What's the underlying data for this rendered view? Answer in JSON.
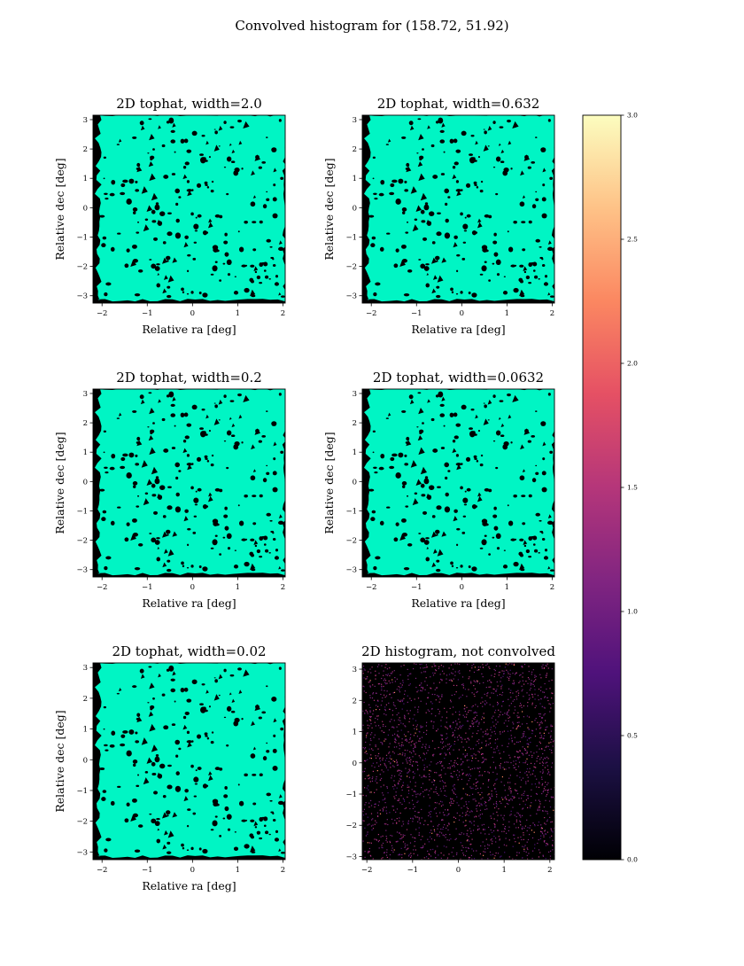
{
  "figure": {
    "suptitle": "Convolved histogram for (158.72, 51.92)"
  },
  "colors": {
    "mask_fill": "#00f5c4",
    "background": "#000000",
    "cmap": [
      "#000004",
      "#1c1044",
      "#4f127b",
      "#812581",
      "#b5367a",
      "#e55064",
      "#fb8761",
      "#fec287",
      "#fcfdbf"
    ]
  },
  "chart_data": [
    {
      "type": "heatmap",
      "title": "2D tophat, width=2.0",
      "xlabel": "Relative ra [deg]",
      "ylabel": "Relative dec [deg]",
      "xlim": [
        -2.2,
        2.05
      ],
      "ylim": [
        -3.25,
        3.15
      ],
      "xticks": [
        -2,
        -1,
        0,
        1,
        2
      ],
      "yticks": [
        -3,
        -2,
        -1,
        0,
        1,
        2,
        3
      ],
      "xtick_labels": [
        "−2",
        "−1",
        "0",
        "1",
        "2"
      ],
      "ytick_labels": [
        "−3",
        "−2",
        "−1",
        "0",
        "1",
        "2",
        "3"
      ],
      "fill_extent": {
        "x": [
          -2.1,
          2.05
        ],
        "y": [
          -3.15,
          3.15
        ]
      },
      "rendering": "binary mask: cyan where smoothed density > 0, black elsewhere"
    },
    {
      "type": "heatmap",
      "title": "2D tophat, width=0.632",
      "xlabel": "Relative ra [deg]",
      "ylabel": "Relative dec [deg]",
      "xlim": [
        -2.2,
        2.05
      ],
      "ylim": [
        -3.25,
        3.15
      ],
      "xticks": [
        -2,
        -1,
        0,
        1,
        2
      ],
      "yticks": [
        -3,
        -2,
        -1,
        0,
        1,
        2,
        3
      ],
      "xtick_labels": [
        "−2",
        "−1",
        "0",
        "1",
        "2"
      ],
      "ytick_labels": [
        "−3",
        "−2",
        "−1",
        "0",
        "1",
        "2",
        "3"
      ],
      "fill_extent": {
        "x": [
          -2.1,
          2.05
        ],
        "y": [
          -3.15,
          3.15
        ]
      },
      "rendering": "binary mask: cyan where smoothed density > 0, black elsewhere"
    },
    {
      "type": "heatmap",
      "title": "2D tophat, width=0.2",
      "xlabel": "Relative ra [deg]",
      "ylabel": "Relative dec [deg]",
      "xlim": [
        -2.2,
        2.05
      ],
      "ylim": [
        -3.25,
        3.15
      ],
      "xticks": [
        -2,
        -1,
        0,
        1,
        2
      ],
      "yticks": [
        -3,
        -2,
        -1,
        0,
        1,
        2,
        3
      ],
      "xtick_labels": [
        "−2",
        "−1",
        "0",
        "1",
        "2"
      ],
      "ytick_labels": [
        "−3",
        "−2",
        "−1",
        "0",
        "1",
        "2",
        "3"
      ],
      "fill_extent": {
        "x": [
          -2.1,
          2.05
        ],
        "y": [
          -3.15,
          3.15
        ]
      },
      "rendering": "binary mask: cyan where smoothed density > 0, black elsewhere"
    },
    {
      "type": "heatmap",
      "title": "2D tophat, width=0.0632",
      "xlabel": "Relative ra [deg]",
      "ylabel": "Relative dec [deg]",
      "xlim": [
        -2.2,
        2.05
      ],
      "ylim": [
        -3.25,
        3.15
      ],
      "xticks": [
        -2,
        -1,
        0,
        1,
        2
      ],
      "yticks": [
        -3,
        -2,
        -1,
        0,
        1,
        2,
        3
      ],
      "xtick_labels": [
        "−2",
        "−1",
        "0",
        "1",
        "2"
      ],
      "ytick_labels": [
        "−3",
        "−2",
        "−1",
        "0",
        "1",
        "2",
        "3"
      ],
      "fill_extent": {
        "x": [
          -2.1,
          2.05
        ],
        "y": [
          -3.15,
          3.15
        ]
      },
      "rendering": "binary mask: cyan where smoothed density > 0, black elsewhere"
    },
    {
      "type": "heatmap",
      "title": "2D tophat, width=0.02",
      "xlabel": "Relative ra [deg]",
      "ylabel": "Relative dec [deg]",
      "xlim": [
        -2.2,
        2.05
      ],
      "ylim": [
        -3.25,
        3.15
      ],
      "xticks": [
        -2,
        -1,
        0,
        1,
        2
      ],
      "yticks": [
        -3,
        -2,
        -1,
        0,
        1,
        2,
        3
      ],
      "xtick_labels": [
        "−2",
        "−1",
        "0",
        "1",
        "2"
      ],
      "ytick_labels": [
        "−3",
        "−2",
        "−1",
        "0",
        "1",
        "2",
        "3"
      ],
      "fill_extent": {
        "x": [
          -2.1,
          2.05
        ],
        "y": [
          -3.15,
          3.15
        ]
      },
      "rendering": "binary mask: cyan where smoothed density > 0, black elsewhere"
    },
    {
      "type": "heatmap",
      "title": "2D histogram, not convolved",
      "xlabel": "",
      "ylabel": "",
      "xlim": [
        -2.1,
        2.1
      ],
      "ylim": [
        -3.1,
        3.2
      ],
      "xticks": [
        -2,
        -1,
        0,
        1,
        2
      ],
      "yticks": [
        -3,
        -2,
        -1,
        0,
        1,
        2,
        3
      ],
      "xtick_labels": [
        "−2",
        "−1",
        "0",
        "1",
        "2"
      ],
      "ytick_labels": [
        "−3",
        "−2",
        "−1",
        "0",
        "1",
        "2",
        "3"
      ],
      "rendering": "sparse counts: mostly 0 (black) with scattered single-count pixels (purple/magenta)",
      "value_range": [
        0,
        3
      ]
    },
    {
      "type": "colorbar",
      "cmap": "magma",
      "vmin": 0.0,
      "vmax": 3.0,
      "ticks": [
        0.0,
        0.5,
        1.0,
        1.5,
        2.0,
        2.5,
        3.0
      ],
      "tick_labels": [
        "0.0",
        "0.5",
        "1.0",
        "1.5",
        "2.0",
        "2.5",
        "3.0"
      ]
    }
  ]
}
